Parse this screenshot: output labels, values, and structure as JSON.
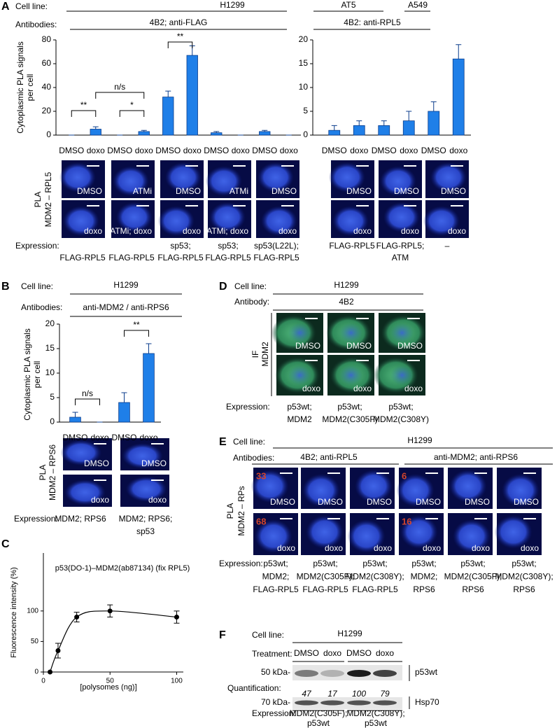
{
  "A": {
    "letter": "A",
    "cell_line_label": "Cell line:",
    "cell_lines": [
      "H1299",
      "AT5",
      "A549"
    ],
    "antibodies_label": "Antibodies:",
    "antibodies": [
      "4B2; anti-FLAG",
      "4B2: anti-RPL5"
    ],
    "assay_label": [
      "PLA",
      "MDM2 – RPL5"
    ],
    "images_left": {
      "top": [
        "DMSO",
        "ATMi",
        "DMSO",
        "ATMi",
        "DMSO"
      ],
      "bottom": [
        "doxo",
        "ATMi; doxo",
        "doxo",
        "ATMi; doxo",
        "doxo"
      ]
    },
    "images_right": {
      "top": [
        "DMSO",
        "DMSO",
        "DMSO"
      ],
      "bottom": [
        "doxo",
        "doxo",
        "doxo"
      ]
    },
    "expression_label": "Expression:",
    "expression_left": [
      [
        "FLAG-RPL5"
      ],
      [
        "FLAG-RPL5"
      ],
      [
        "sp53;",
        "FLAG-RPL5"
      ],
      [
        "sp53;",
        "FLAG-RPL5"
      ],
      [
        "sp53(L22L);",
        "FLAG-RPL5"
      ]
    ],
    "expression_right": [
      [
        "FLAG-RPL5"
      ],
      [
        "FLAG-RPL5;",
        "ATM"
      ],
      [
        "–"
      ]
    ]
  },
  "B": {
    "letter": "B",
    "cell_line_label": "Cell line:",
    "cell_line": "H1299",
    "antibodies_label": "Antibodies:",
    "antibodies": "anti-MDM2 / anti-RPS6",
    "assay_label": [
      "PLA",
      "MDM2 – RPS6"
    ],
    "images": {
      "top": [
        "DMSO",
        "DMSO"
      ],
      "bottom": [
        "doxo",
        "doxo"
      ]
    },
    "expression_label": "Expression:",
    "expression": [
      [
        "MDM2; RPS6"
      ],
      [
        "MDM2; RPS6;",
        "sp53"
      ]
    ]
  },
  "C": {
    "letter": "C"
  },
  "D": {
    "letter": "D",
    "cell_line_label": "Cell line:",
    "cell_line": "H1299",
    "antibody_label": "Antibody:",
    "antibody": "4B2",
    "assay_label": [
      "IF",
      "MDM2"
    ],
    "images": {
      "top": [
        "DMSO",
        "DMSO",
        "DMSO"
      ],
      "bottom": [
        "doxo",
        "doxo",
        "doxo"
      ]
    },
    "expression_label": "Expression:",
    "expression": [
      [
        "p53wt;",
        "MDM2"
      ],
      [
        "p53wt;",
        "MDM2(C305F)"
      ],
      [
        "p53wt;",
        "MDM2(C308Y)"
      ]
    ]
  },
  "E": {
    "letter": "E",
    "cell_line_label": "Cell line:",
    "cell_line": "H1299",
    "antibodies_label": "Antibodies:",
    "antibodies": [
      "4B2; anti-RPL5",
      "anti-MDM2; anti-RPS6"
    ],
    "assay_label": [
      "PLA",
      "MDM2 – RPs"
    ],
    "images": {
      "top": [
        "DMSO",
        "DMSO",
        "DMSO",
        "DMSO",
        "DMSO",
        "DMSO"
      ],
      "bottom": [
        "doxo",
        "doxo",
        "doxo",
        "doxo",
        "doxo",
        "doxo"
      ]
    },
    "counts": {
      "top": [
        33,
        null,
        null,
        6,
        null,
        null
      ],
      "bottom": [
        68,
        null,
        null,
        16,
        null,
        null
      ]
    },
    "expression_label": "Expression:",
    "expression": [
      [
        "p53wt;",
        "MDM2;",
        "FLAG-RPL5"
      ],
      [
        "p53wt;",
        "MDM2(C305F);",
        "FLAG-RPL5"
      ],
      [
        "p53wt;",
        "MDM2(C308Y);",
        "FLAG-RPL5"
      ],
      [
        "p53wt;",
        "MDM2;",
        "RPS6"
      ],
      [
        "p53wt;",
        "MDM2(C305F);",
        "RPS6"
      ],
      [
        "p53wt;",
        "MDM2(C308Y);",
        "RPS6"
      ]
    ]
  },
  "F": {
    "letter": "F",
    "cell_line_label": "Cell line:",
    "cell_line": "H1299",
    "treatment_label": "Treatment:",
    "treatments": [
      "DMSO",
      "doxo",
      "DMSO",
      "doxo"
    ],
    "markers": [
      "50 kDa-",
      "70 kDa-"
    ],
    "proteins": [
      "p53wt",
      "Hsp70"
    ],
    "quantification_label": "Quantification:",
    "quantification": [
      47,
      17,
      100,
      79
    ],
    "expression_label": "Expression:",
    "expression": [
      [
        "MDM2(C305F);",
        "p53wt"
      ],
      [
        "MDM2(C308Y);",
        "p53wt"
      ]
    ]
  },
  "chart_data": [
    {
      "type": "bar",
      "ylabel": [
        "Cytoplasmic PLA signals",
        "per cell"
      ],
      "categories": [
        "DMSO",
        "doxo",
        "DMSO",
        "doxo",
        "DMSO",
        "doxo",
        "DMSO",
        "doxo",
        "DMSO",
        "doxo"
      ],
      "values": [
        0,
        5,
        0,
        3,
        32,
        67,
        2,
        0,
        3,
        0
      ],
      "errors": [
        0,
        2,
        0,
        1,
        5,
        8,
        1,
        0,
        1,
        0
      ],
      "color": "#1f7fe8",
      "ylim": [
        0,
        80
      ],
      "yticks": [
        0,
        20,
        40,
        60,
        80
      ],
      "annotations": [
        "**",
        "*",
        "n/s",
        "**"
      ]
    },
    {
      "type": "bar",
      "categories": [
        "DMSO",
        "doxo",
        "DMSO",
        "doxo",
        "DMSO",
        "doxo"
      ],
      "values": [
        1,
        2,
        2,
        3,
        5,
        16
      ],
      "errors": [
        1,
        1,
        1,
        2,
        2,
        3
      ],
      "color": "#1f7fe8",
      "ylim": [
        0,
        20
      ],
      "yticks": [
        0,
        5,
        10,
        15,
        20
      ]
    },
    {
      "type": "bar",
      "ylabel": [
        "Cytoplasmic PLA signals",
        "per cell"
      ],
      "categories": [
        "DMSO",
        "doxo",
        "DMSO",
        "doxo"
      ],
      "values": [
        1,
        0,
        4,
        14
      ],
      "errors": [
        1,
        0,
        2,
        2
      ],
      "color": "#1f7fe8",
      "ylim": [
        0,
        20
      ],
      "yticks": [
        0,
        5,
        10,
        15,
        20
      ],
      "annotations": [
        "n/s",
        "**"
      ]
    },
    {
      "type": "scatter",
      "title": "p53(DO-1)–MDM2(ab87134) (fix RPL5)",
      "xlabel": "[polysomes (ng)]",
      "ylabel": "Fluorescence intensity (%)",
      "x": [
        5,
        11,
        25,
        50,
        100
      ],
      "values": [
        0,
        35,
        90,
        100,
        90
      ],
      "errors": [
        0,
        12,
        8,
        10,
        10
      ],
      "color": "#000000",
      "xlim": [
        0,
        105
      ],
      "ylim": [
        0,
        195
      ],
      "xticks": [
        0,
        50,
        100
      ],
      "yticks": [
        0,
        50,
        100
      ]
    }
  ]
}
